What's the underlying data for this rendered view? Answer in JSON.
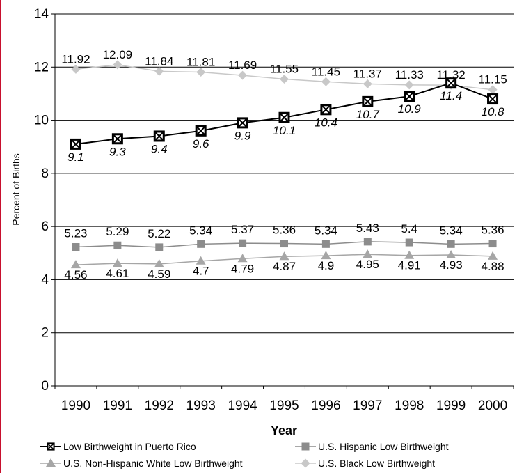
{
  "chart_data": {
    "type": "line",
    "title": "",
    "xlabel": "Year",
    "ylabel": "Percent of Births",
    "ylim": [
      0,
      14
    ],
    "yticks": [
      "0",
      "2",
      "4",
      "6",
      "8",
      "10",
      "12",
      "14"
    ],
    "categories": [
      "1990",
      "1991",
      "1992",
      "1993",
      "1994",
      "1995",
      "1996",
      "1997",
      "1998",
      "1999",
      "2000"
    ],
    "grid": true,
    "legend_position": "bottom",
    "series": [
      {
        "name": "Low Birthweight in Puerto Rico",
        "values": [
          9.1,
          9.3,
          9.4,
          9.6,
          9.9,
          10.1,
          10.4,
          10.7,
          10.9,
          11.4,
          10.8
        ],
        "labels": [
          "9.1",
          "9.3",
          "9.4",
          "9.6",
          "9.9",
          "10.1",
          "10.4",
          "10.7",
          "10.9",
          "11.4",
          "10.8"
        ],
        "marker": "boxed-x",
        "color": "#000000",
        "label_position": "below",
        "label_italic": true
      },
      {
        "name": "U.S. Hispanic Low Birthweight",
        "values": [
          5.23,
          5.29,
          5.22,
          5.34,
          5.37,
          5.36,
          5.34,
          5.43,
          5.4,
          5.34,
          5.36
        ],
        "labels": [
          "5.23",
          "5.29",
          "5.22",
          "5.34",
          "5.37",
          "5.36",
          "5.34",
          "5.43",
          "5.4",
          "5.34",
          "5.36"
        ],
        "marker": "square",
        "color": "#8c8c8c",
        "label_position": "above",
        "label_italic": false
      },
      {
        "name": "U.S. Non-Hispanic White Low Birthweight",
        "values": [
          4.56,
          4.61,
          4.59,
          4.7,
          4.79,
          4.87,
          4.9,
          4.95,
          4.91,
          4.93,
          4.88
        ],
        "labels": [
          "4.56",
          "4.61",
          "4.59",
          "4.7",
          "4.79",
          "4.87",
          "4.9",
          "4.95",
          "4.91",
          "4.93",
          "4.88"
        ],
        "marker": "triangle",
        "color": "#a6a6a6",
        "label_position": "below",
        "label_italic": false
      },
      {
        "name": "U.S. Black Low Birthweight",
        "values": [
          11.92,
          12.09,
          11.84,
          11.81,
          11.69,
          11.55,
          11.45,
          11.37,
          11.33,
          11.32,
          11.15
        ],
        "labels": [
          "11.92",
          "12.09",
          "11.84",
          "11.81",
          "11.69",
          "11.55",
          "11.45",
          "11.37",
          "11.33",
          "11.32",
          "11.15"
        ],
        "marker": "diamond",
        "color": "#c8c8c8",
        "label_position": "above",
        "label_italic": false
      }
    ]
  }
}
